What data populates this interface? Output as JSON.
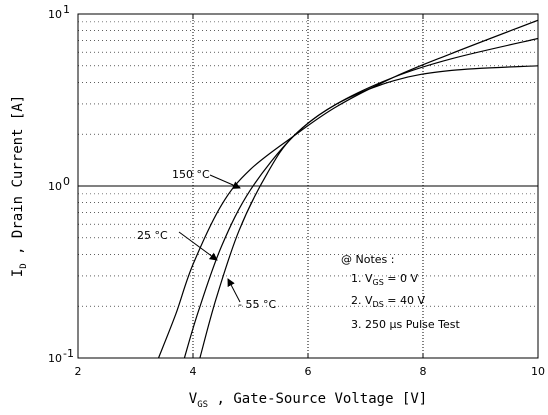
{
  "chart_data": {
    "type": "line",
    "title": "",
    "xlabel": {
      "main": "V",
      "sub": "GS",
      "rest": " , Gate-Source Voltage  [V]"
    },
    "ylabel": {
      "main": "I",
      "sub": "D",
      "rest": " , Drain Current  [A]"
    },
    "x_scale": "linear",
    "y_scale": "log",
    "xlim": [
      2,
      10
    ],
    "ylim": [
      0.1,
      10
    ],
    "x_ticks": [
      2,
      4,
      6,
      8,
      10
    ],
    "x_tick_labels": [
      "2",
      "4",
      "6",
      "8",
      "10"
    ],
    "y_ticks": [
      0.1,
      1,
      10
    ],
    "y_tick_labels": [
      {
        "base": "10",
        "exp": "-1"
      },
      {
        "base": "10",
        "exp": "0"
      },
      {
        "base": "10",
        "exp": "1"
      }
    ],
    "grid": true,
    "series": [
      {
        "name": "150 °C",
        "x": [
          3.4,
          3.7,
          4.0,
          4.5,
          5.0,
          5.75,
          6.5,
          7.5,
          8.5,
          10.0
        ],
        "y": [
          0.1,
          0.18,
          0.35,
          0.78,
          1.25,
          1.95,
          2.9,
          4.3,
          5.9,
          9.2
        ]
      },
      {
        "name": "25 °C",
        "x": [
          3.85,
          4.1,
          4.5,
          5.0,
          5.75,
          6.5,
          7.5,
          8.5,
          10.0
        ],
        "y": [
          0.1,
          0.19,
          0.45,
          0.95,
          1.95,
          3.0,
          4.3,
          5.5,
          7.2
        ]
      },
      {
        "name": "- 55 °C",
        "x": [
          4.12,
          4.4,
          4.8,
          5.3,
          5.75,
          6.5,
          7.5,
          8.5,
          10.0
        ],
        "y": [
          0.1,
          0.22,
          0.55,
          1.2,
          1.95,
          3.0,
          4.1,
          4.7,
          5.0
        ]
      }
    ],
    "reference_lines": [
      {
        "axis": "y",
        "value": 1
      }
    ],
    "annotations": [
      {
        "label": "150 °C"
      },
      {
        "label": "25 °C"
      },
      {
        "label": "- 55 °C"
      }
    ],
    "notes": {
      "title": "@ Notes :",
      "items": [
        {
          "pre": "1. V",
          "sub": "GS",
          "post": " = 0 V"
        },
        {
          "pre": "2. V",
          "sub": "DS",
          "post": " = 40 V"
        },
        {
          "pre": "3. 250 ",
          "mu": "μ",
          "post": "s Pulse Test"
        }
      ]
    }
  }
}
